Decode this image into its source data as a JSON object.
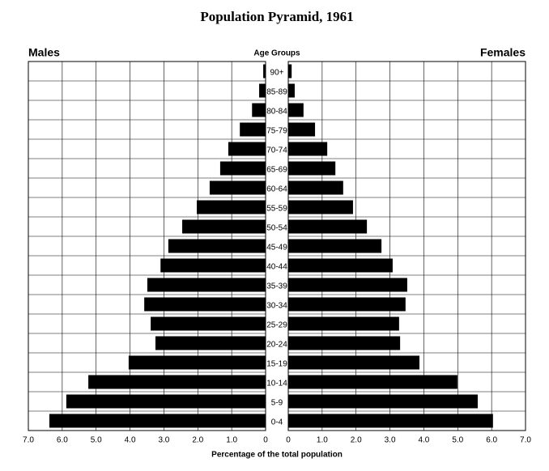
{
  "chart_data": {
    "type": "pyramid",
    "title": "Population Pyramid, 1961",
    "category_label": "Age Groups",
    "x_label": "Percentage of the total population",
    "categories": [
      "0-4",
      "5-9",
      "10-14",
      "15-19",
      "20-24",
      "25-29",
      "30-34",
      "35-39",
      "40-44",
      "45-49",
      "50-54",
      "55-59",
      "60-64",
      "65-69",
      "70-74",
      "75-79",
      "80-84",
      "85-89",
      "90+"
    ],
    "series": [
      {
        "name": "Males",
        "side": "left",
        "color": "#000000",
        "values": [
          6.38,
          5.88,
          5.23,
          4.04,
          3.25,
          3.39,
          3.58,
          3.49,
          3.1,
          2.87,
          2.46,
          2.03,
          1.65,
          1.34,
          1.1,
          0.76,
          0.4,
          0.19,
          0.07
        ]
      },
      {
        "name": "Females",
        "side": "right",
        "color": "#000000",
        "values": [
          6.04,
          5.59,
          4.99,
          3.87,
          3.3,
          3.27,
          3.46,
          3.51,
          3.08,
          2.75,
          2.32,
          1.91,
          1.62,
          1.39,
          1.15,
          0.79,
          0.45,
          0.19,
          0.1
        ]
      }
    ],
    "xlim": [
      0,
      7
    ],
    "xticks": [
      0,
      {
        "value": 1,
        "label": "1.0"
      },
      {
        "value": 2,
        "label": "2.0"
      },
      {
        "value": 3,
        "label": "3.0"
      },
      {
        "value": 4,
        "label": "4.0"
      },
      {
        "value": 5,
        "label": "5.0"
      },
      {
        "value": 6,
        "label": "6.0"
      },
      {
        "value": 7,
        "label": "7.0"
      }
    ],
    "grid": true
  }
}
